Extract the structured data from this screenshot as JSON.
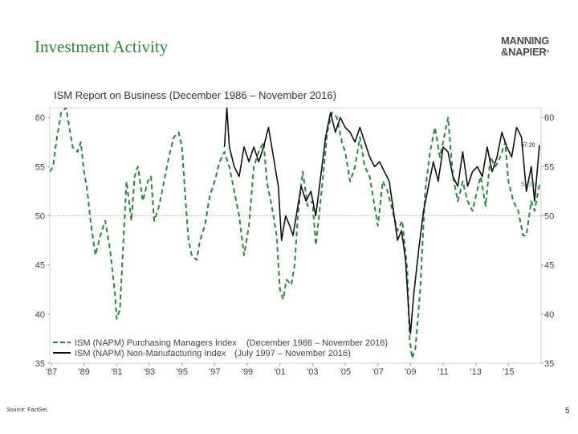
{
  "slide": {
    "title": "Investment Activity",
    "source": "Source: FactSet.",
    "page_number": "5"
  },
  "logo": {
    "line1": "MANNING",
    "line2": "&NAPIER",
    "mark": "®"
  },
  "colors": {
    "title_green": "#2e8540",
    "pmi": "#2e8540",
    "nmi": "#111111",
    "grid": "#c8c8c8"
  },
  "chart_data": {
    "type": "line",
    "title": "ISM Report on Business (December 1986 – November 2016)",
    "ylim": [
      35,
      61
    ],
    "y_ticks": [
      35,
      40,
      45,
      50,
      55,
      60
    ],
    "y_tick_labels": [
      "35",
      "40",
      "45",
      "50",
      "55",
      "60"
    ],
    "x_range": [
      1986.9,
      2017.0
    ],
    "x_ticks": [
      1987,
      1989,
      1991,
      1993,
      1995,
      1997,
      1999,
      2001,
      2003,
      2005,
      2007,
      2009,
      2011,
      2013,
      2015
    ],
    "x_tick_labels": [
      "'87",
      "'89",
      "'91",
      "'93",
      "'95",
      "'97",
      "'99",
      "'01",
      "'03",
      "'05",
      "'07",
      "'09",
      "'11",
      "'13",
      "'15"
    ],
    "reference_line": 50,
    "legend": [
      {
        "label": "ISM (NAPM) Purchasing Managers Index",
        "period": "(December 1986 – November 2016)"
      },
      {
        "label": "ISM (NAPM) Non-Manufacturing Index",
        "period": "(July 1997 – November 2016)"
      }
    ],
    "end_labels": [
      "57.20",
      "53.20"
    ],
    "series": [
      {
        "name": "ISM (NAPM) Purchasing Managers Index",
        "style": "dashed",
        "x": [
          1986.9,
          1987.1,
          1987.3,
          1987.6,
          1987.9,
          1988.1,
          1988.3,
          1988.6,
          1988.8,
          1989.0,
          1989.2,
          1989.4,
          1989.7,
          1990.0,
          1990.3,
          1990.6,
          1990.9,
          1991.0,
          1991.2,
          1991.4,
          1991.6,
          1991.9,
          1992.1,
          1992.3,
          1992.6,
          1992.9,
          1993.1,
          1993.3,
          1993.6,
          1993.9,
          1994.2,
          1994.5,
          1994.8,
          1995.0,
          1995.2,
          1995.4,
          1995.6,
          1995.9,
          1996.1,
          1996.4,
          1996.7,
          1997.0,
          1997.3,
          1997.6,
          1997.9,
          1998.2,
          1998.5,
          1998.8,
          1999.1,
          1999.4,
          1999.7,
          2000.0,
          2000.2,
          2000.5,
          2000.8,
          2001.0,
          2001.2,
          2001.4,
          2001.7,
          2001.9,
          2002.1,
          2002.4,
          2002.7,
          2003.0,
          2003.2,
          2003.4,
          2003.7,
          2003.9,
          2004.2,
          2004.5,
          2004.8,
          2005.0,
          2005.3,
          2005.6,
          2005.9,
          2006.2,
          2006.5,
          2006.8,
          2007.0,
          2007.3,
          2007.6,
          2007.9,
          2008.2,
          2008.5,
          2008.8,
          2008.95,
          2009.1,
          2009.3,
          2009.6,
          2009.9,
          2010.2,
          2010.5,
          2010.8,
          2011.0,
          2011.3,
          2011.6,
          2011.9,
          2012.2,
          2012.5,
          2012.8,
          2013.0,
          2013.3,
          2013.6,
          2013.9,
          2014.2,
          2014.5,
          2014.8,
          2015.0,
          2015.3,
          2015.6,
          2015.9,
          2016.1,
          2016.4,
          2016.6,
          2016.9
        ],
        "y": [
          54.5,
          55.0,
          57.5,
          60.5,
          61.0,
          59.0,
          57.0,
          56.5,
          57.5,
          54.5,
          52.5,
          49.5,
          46.0,
          48.0,
          49.5,
          46.5,
          42.0,
          39.5,
          40.5,
          47.0,
          53.5,
          49.5,
          54.0,
          55.0,
          51.5,
          53.5,
          54.0,
          49.5,
          51.0,
          53.5,
          56.0,
          58.0,
          58.5,
          57.0,
          52.0,
          47.5,
          46.0,
          45.5,
          47.5,
          49.0,
          52.0,
          53.5,
          55.5,
          56.5,
          55.0,
          52.5,
          50.0,
          46.0,
          49.0,
          55.0,
          56.5,
          57.5,
          53.5,
          51.0,
          48.0,
          42.5,
          41.5,
          43.5,
          43.0,
          45.0,
          50.0,
          54.5,
          51.0,
          51.5,
          47.0,
          50.0,
          55.0,
          58.5,
          60.5,
          60.0,
          57.5,
          56.5,
          53.5,
          55.0,
          58.0,
          55.0,
          54.0,
          51.0,
          49.0,
          53.5,
          52.5,
          50.5,
          48.5,
          49.5,
          44.5,
          37.5,
          35.5,
          36.5,
          42.5,
          52.5,
          56.5,
          59.0,
          56.0,
          57.5,
          60.0,
          54.0,
          51.5,
          53.5,
          51.5,
          50.5,
          52.0,
          54.0,
          51.0,
          56.0,
          55.0,
          56.0,
          57.5,
          53.5,
          51.5,
          50.5,
          48.0,
          48.0,
          51.5,
          50.5,
          53.2
        ]
      },
      {
        "name": "ISM (NAPM) Non-Manufacturing Index",
        "style": "solid",
        "x": [
          1997.6,
          1997.75,
          1997.9,
          1998.2,
          1998.5,
          1998.8,
          1999.1,
          1999.4,
          1999.7,
          2000.0,
          2000.3,
          2000.6,
          2000.9,
          2001.1,
          2001.35,
          2001.6,
          2001.8,
          2002.0,
          2002.3,
          2002.6,
          2002.9,
          2003.2,
          2003.5,
          2003.8,
          2004.1,
          2004.4,
          2004.7,
          2005.0,
          2005.3,
          2005.6,
          2005.9,
          2006.2,
          2006.5,
          2006.8,
          2007.1,
          2007.4,
          2007.7,
          2008.0,
          2008.2,
          2008.45,
          2008.7,
          2008.9,
          2009.0,
          2009.2,
          2009.5,
          2009.8,
          2010.1,
          2010.4,
          2010.7,
          2011.0,
          2011.3,
          2011.6,
          2011.9,
          2012.2,
          2012.5,
          2012.8,
          2013.1,
          2013.4,
          2013.7,
          2014.0,
          2014.3,
          2014.6,
          2014.9,
          2015.2,
          2015.5,
          2015.8,
          2016.1,
          2016.4,
          2016.6,
          2016.9
        ],
        "y": [
          57.0,
          61.0,
          57.0,
          55.0,
          54.0,
          57.0,
          55.5,
          57.0,
          55.5,
          57.0,
          59.0,
          56.0,
          53.0,
          47.5,
          50.0,
          49.0,
          48.0,
          50.0,
          53.0,
          51.5,
          52.5,
          50.0,
          54.0,
          58.0,
          60.5,
          58.5,
          60.0,
          59.0,
          58.5,
          57.5,
          59.0,
          57.5,
          56.0,
          55.0,
          55.5,
          54.5,
          53.5,
          50.0,
          47.5,
          48.5,
          45.5,
          40.0,
          38.0,
          42.0,
          46.5,
          50.5,
          53.0,
          55.5,
          53.5,
          57.0,
          56.5,
          54.0,
          53.0,
          56.5,
          53.0,
          54.5,
          55.0,
          54.0,
          57.0,
          54.5,
          56.0,
          58.5,
          57.0,
          56.0,
          59.0,
          58.0,
          52.5,
          55.0,
          51.5,
          57.2
        ]
      }
    ]
  }
}
